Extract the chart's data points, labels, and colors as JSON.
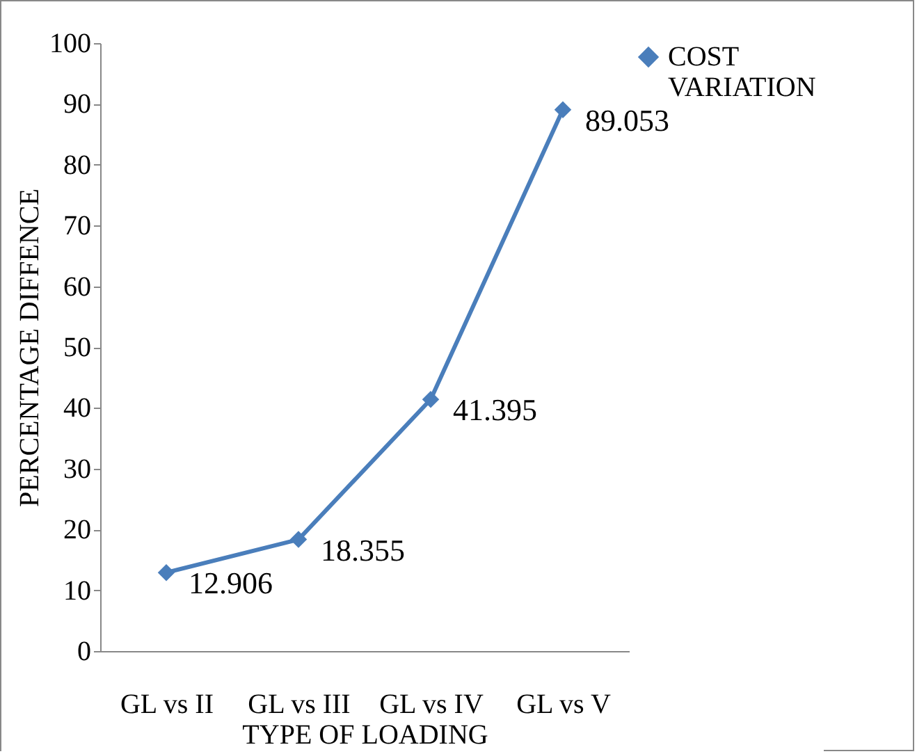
{
  "chart_data": {
    "type": "line",
    "xlabel": "TYPE OF LOADING",
    "ylabel": "PERCENTAGE DIFFENCE",
    "categories": [
      "GL vs II",
      "GL vs III",
      "GL vs IV",
      "GL vs V"
    ],
    "series": [
      {
        "name": "COST VARIATION",
        "color": "#4a7ebb",
        "values": [
          12.906,
          18.355,
          41.395,
          89.053
        ]
      }
    ],
    "ylim": [
      0,
      100
    ],
    "yticks": [
      0,
      10,
      20,
      30,
      40,
      50,
      60,
      70,
      80,
      90,
      100
    ],
    "data_labels": true,
    "legend": "right",
    "marker": "diamond",
    "line_style": "solid"
  }
}
